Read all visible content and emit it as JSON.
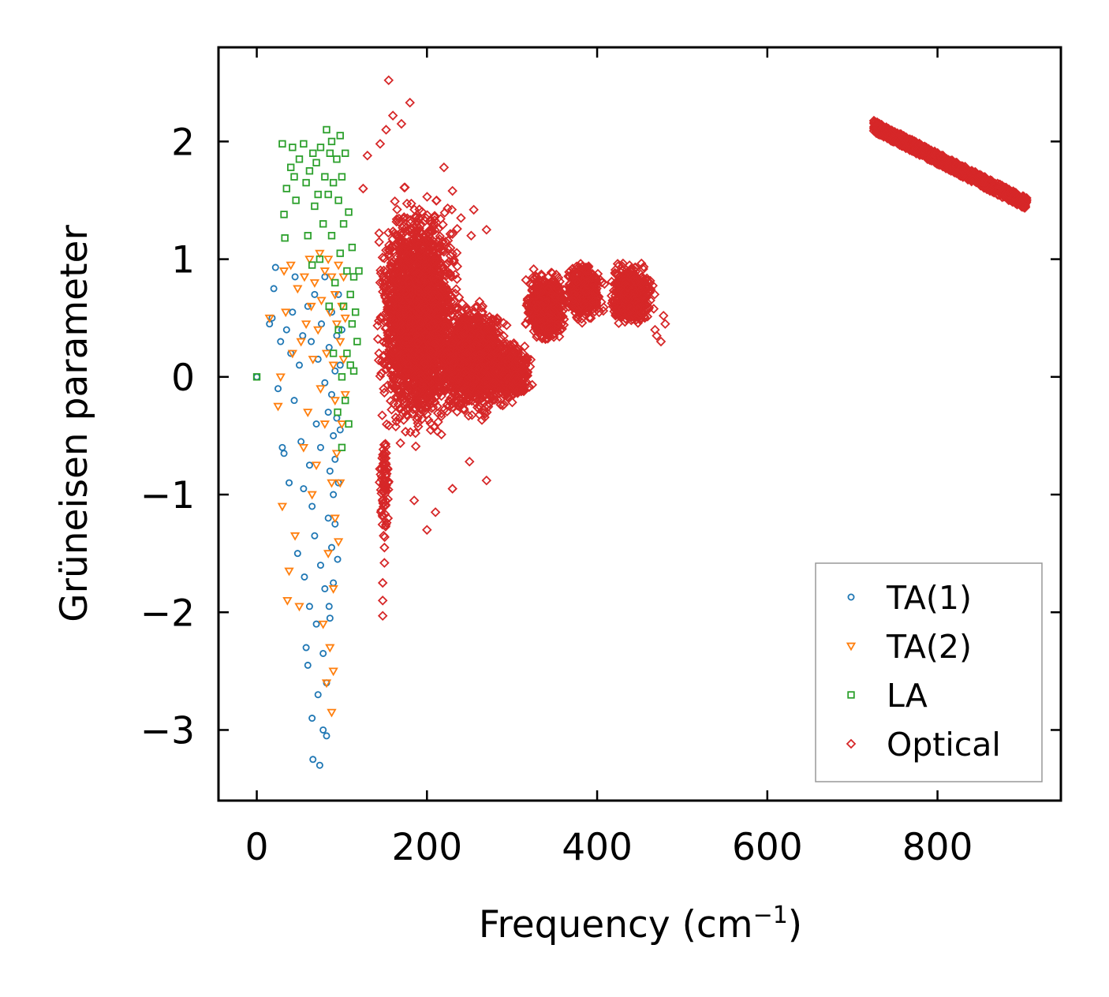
{
  "chart_data": {
    "type": "scatter",
    "title": "",
    "xlabel_main": "Frequency (cm",
    "xlabel_sup": "−1",
    "xlabel_close": ")",
    "ylabel": "Grüneisen parameter",
    "xlim": [
      -45,
      945
    ],
    "ylim": [
      -3.6,
      2.8
    ],
    "xticks": [
      0,
      200,
      400,
      600,
      800
    ],
    "xtick_labels": [
      "0",
      "200",
      "400",
      "600",
      "800"
    ],
    "yticks": [
      -3,
      -2,
      -1,
      0,
      1,
      2
    ],
    "ytick_labels": [
      "−3",
      "−2",
      "−1",
      "0",
      "1",
      "2"
    ],
    "legend_position": "lower-right",
    "series": [
      {
        "name": "TA(1)",
        "marker": "circle",
        "color": "#1f77b4",
        "points": [
          [
            0,
            0
          ],
          [
            15,
            0.45
          ],
          [
            18,
            0.5
          ],
          [
            20,
            0.75
          ],
          [
            22,
            0.93
          ],
          [
            25,
            -0.1
          ],
          [
            28,
            0.3
          ],
          [
            30,
            -0.6
          ],
          [
            32,
            -0.65
          ],
          [
            35,
            0.4
          ],
          [
            38,
            -0.9
          ],
          [
            40,
            0.2
          ],
          [
            42,
            0.55
          ],
          [
            44,
            -0.2
          ],
          [
            45,
            0.85
          ],
          [
            48,
            -1.5
          ],
          [
            50,
            0.1
          ],
          [
            52,
            -0.55
          ],
          [
            54,
            0.35
          ],
          [
            55,
            -0.95
          ],
          [
            56,
            -1.7
          ],
          [
            58,
            -2.3
          ],
          [
            60,
            0.6
          ],
          [
            60,
            -2.45
          ],
          [
            62,
            -0.75
          ],
          [
            62,
            -1.95
          ],
          [
            64,
            0.3
          ],
          [
            65,
            -1.1
          ],
          [
            65,
            -2.9
          ],
          [
            66,
            -3.25
          ],
          [
            68,
            0.7
          ],
          [
            68,
            -1.35
          ],
          [
            70,
            -2.1
          ],
          [
            70,
            -0.4
          ],
          [
            72,
            0.15
          ],
          [
            72,
            -2.7
          ],
          [
            74,
            -3.3
          ],
          [
            75,
            -1.6
          ],
          [
            75,
            -0.6
          ],
          [
            76,
            0.45
          ],
          [
            78,
            -2.35
          ],
          [
            78,
            -3.0
          ],
          [
            80,
            -1.8
          ],
          [
            80,
            -0.05
          ],
          [
            80,
            0.85
          ],
          [
            82,
            -2.6
          ],
          [
            82,
            -3.05
          ],
          [
            84,
            -1.2
          ],
          [
            84,
            -0.3
          ],
          [
            85,
            -1.95
          ],
          [
            85,
            0.25
          ],
          [
            86,
            -0.8
          ],
          [
            86,
            -2.05
          ],
          [
            88,
            -1.45
          ],
          [
            88,
            -0.15
          ],
          [
            88,
            0.55
          ],
          [
            90,
            -0.5
          ],
          [
            90,
            -1.0
          ],
          [
            90,
            -1.75
          ],
          [
            92,
            0.05
          ],
          [
            92,
            -1.25
          ],
          [
            92,
            -0.7
          ],
          [
            94,
            -0.35
          ],
          [
            94,
            0.35
          ],
          [
            95,
            -1.55
          ],
          [
            96,
            -0.9
          ],
          [
            96,
            0.7
          ],
          [
            98,
            0.1
          ],
          [
            98,
            -0.45
          ],
          [
            100,
            0.4
          ]
        ]
      },
      {
        "name": "TA(2)",
        "marker": "triangle-down",
        "color": "#ff7f0e",
        "points": [
          [
            15,
            0.5
          ],
          [
            25,
            -0.25
          ],
          [
            28,
            0.0
          ],
          [
            30,
            -1.1
          ],
          [
            32,
            0.9
          ],
          [
            34,
            0.55
          ],
          [
            36,
            -1.9
          ],
          [
            38,
            -1.65
          ],
          [
            40,
            0.95
          ],
          [
            42,
            0.2
          ],
          [
            45,
            -1.35
          ],
          [
            48,
            0.75
          ],
          [
            50,
            -1.95
          ],
          [
            52,
            0.3
          ],
          [
            55,
            -0.6
          ],
          [
            56,
            0.85
          ],
          [
            58,
            0.45
          ],
          [
            60,
            -0.3
          ],
          [
            62,
            1.0
          ],
          [
            64,
            0.6
          ],
          [
            65,
            -1.0
          ],
          [
            66,
            0.15
          ],
          [
            68,
            0.8
          ],
          [
            70,
            -0.75
          ],
          [
            72,
            0.4
          ],
          [
            74,
            1.05
          ],
          [
            75,
            -0.1
          ],
          [
            76,
            0.65
          ],
          [
            78,
            -2.1
          ],
          [
            80,
            0.9
          ],
          [
            80,
            -0.4
          ],
          [
            82,
            -2.6
          ],
          [
            82,
            0.2
          ],
          [
            84,
            1.0
          ],
          [
            84,
            -1.5
          ],
          [
            86,
            0.55
          ],
          [
            86,
            -2.3
          ],
          [
            88,
            -0.9
          ],
          [
            88,
            0.85
          ],
          [
            88,
            -2.85
          ],
          [
            90,
            -1.8
          ],
          [
            90,
            0.1
          ],
          [
            90,
            -2.5
          ],
          [
            92,
            0.7
          ],
          [
            92,
            -1.2
          ],
          [
            92,
            -0.2
          ],
          [
            94,
            0.45
          ],
          [
            94,
            -0.65
          ],
          [
            96,
            0.95
          ],
          [
            96,
            -1.4
          ],
          [
            98,
            0.3
          ],
          [
            98,
            -0.9
          ],
          [
            100,
            0.6
          ],
          [
            100,
            -0.4
          ],
          [
            102,
            0.15
          ],
          [
            102,
            0.85
          ],
          [
            104,
            -0.15
          ],
          [
            104,
            0.5
          ]
        ]
      },
      {
        "name": "LA",
        "marker": "square",
        "color": "#2ca02c",
        "points": [
          [
            0,
            0
          ],
          [
            30,
            1.98
          ],
          [
            32,
            1.38
          ],
          [
            33,
            1.18
          ],
          [
            35,
            1.6
          ],
          [
            40,
            1.78
          ],
          [
            42,
            1.95
          ],
          [
            44,
            1.7
          ],
          [
            46,
            1.5
          ],
          [
            50,
            1.85
          ],
          [
            55,
            1.98
          ],
          [
            58,
            1.65
          ],
          [
            60,
            1.2
          ],
          [
            62,
            1.75
          ],
          [
            65,
            0.95
          ],
          [
            66,
            1.9
          ],
          [
            68,
            1.45
          ],
          [
            70,
            1.82
          ],
          [
            72,
            1.55
          ],
          [
            74,
            1.0
          ],
          [
            75,
            1.95
          ],
          [
            78,
            1.3
          ],
          [
            80,
            1.7
          ],
          [
            82,
            2.1
          ],
          [
            84,
            1.55
          ],
          [
            85,
            0.6
          ],
          [
            86,
            1.9
          ],
          [
            88,
            1.2
          ],
          [
            88,
            2.0
          ],
          [
            90,
            0.2
          ],
          [
            90,
            1.65
          ],
          [
            92,
            0.8
          ],
          [
            94,
            1.85
          ],
          [
            95,
            -0.3
          ],
          [
            96,
            1.5
          ],
          [
            96,
            0.4
          ],
          [
            98,
            2.05
          ],
          [
            98,
            1.05
          ],
          [
            100,
            1.7
          ],
          [
            100,
            0.0
          ],
          [
            100,
            -0.6
          ],
          [
            102,
            1.3
          ],
          [
            102,
            0.6
          ],
          [
            104,
            1.9
          ],
          [
            104,
            -0.2
          ],
          [
            106,
            0.9
          ],
          [
            106,
            0.2
          ],
          [
            108,
            1.4
          ],
          [
            108,
            -0.4
          ],
          [
            110,
            0.7
          ],
          [
            110,
            0.1
          ],
          [
            112,
            1.1
          ],
          [
            112,
            0.45
          ],
          [
            114,
            0.85
          ],
          [
            114,
            0.05
          ],
          [
            116,
            0.55
          ],
          [
            118,
            0.3
          ],
          [
            120,
            0.9
          ]
        ]
      },
      {
        "name": "Optical",
        "marker": "diamond",
        "color": "#d62728",
        "clusters": [
          {
            "center": [
              190,
              0.5
            ],
            "spread": [
              55,
              1.15
            ],
            "count": 2600
          },
          {
            "center": [
              255,
              0.15
            ],
            "spread": [
              50,
              0.55
            ],
            "count": 1300
          },
          {
            "center": [
              150,
              -0.9
            ],
            "spread": [
              6,
              0.6
            ],
            "count": 80
          },
          {
            "center": [
              340,
              0.6
            ],
            "spread": [
              28,
              0.35
            ],
            "count": 700
          },
          {
            "center": [
              385,
              0.72
            ],
            "spread": [
              25,
              0.28
            ],
            "count": 600
          },
          {
            "center": [
              440,
              0.7
            ],
            "spread": [
              30,
              0.3
            ],
            "count": 700
          },
          {
            "center": [
              300,
              0.05
            ],
            "spread": [
              28,
              0.3
            ],
            "count": 400
          }
        ],
        "band": {
          "x_start": 725,
          "y_start": 2.13,
          "x_end": 905,
          "y_end": 1.47,
          "width": 0.1,
          "count": 900
        },
        "outliers": [
          [
            155,
            2.52
          ],
          [
            180,
            2.33
          ],
          [
            160,
            2.22
          ],
          [
            170,
            2.15
          ],
          [
            152,
            2.1
          ],
          [
            145,
            1.98
          ],
          [
            220,
            1.78
          ],
          [
            230,
            1.58
          ],
          [
            240,
            1.35
          ],
          [
            252,
            1.2
          ],
          [
            270,
            1.25
          ],
          [
            255,
            1.42
          ],
          [
            210,
            -1.15
          ],
          [
            200,
            -1.3
          ],
          [
            185,
            -1.05
          ],
          [
            230,
            -0.95
          ],
          [
            270,
            -0.88
          ],
          [
            250,
            -0.72
          ],
          [
            150,
            -1.45
          ],
          [
            150,
            -1.58
          ],
          [
            148,
            -1.75
          ],
          [
            148,
            -1.9
          ],
          [
            148,
            -2.03
          ],
          [
            470,
            0.35
          ],
          [
            478,
            0.52
          ],
          [
            480,
            0.45
          ],
          [
            475,
            0.3
          ],
          [
            468,
            0.4
          ],
          [
            130,
            1.88
          ],
          [
            125,
            1.6
          ]
        ]
      }
    ]
  }
}
